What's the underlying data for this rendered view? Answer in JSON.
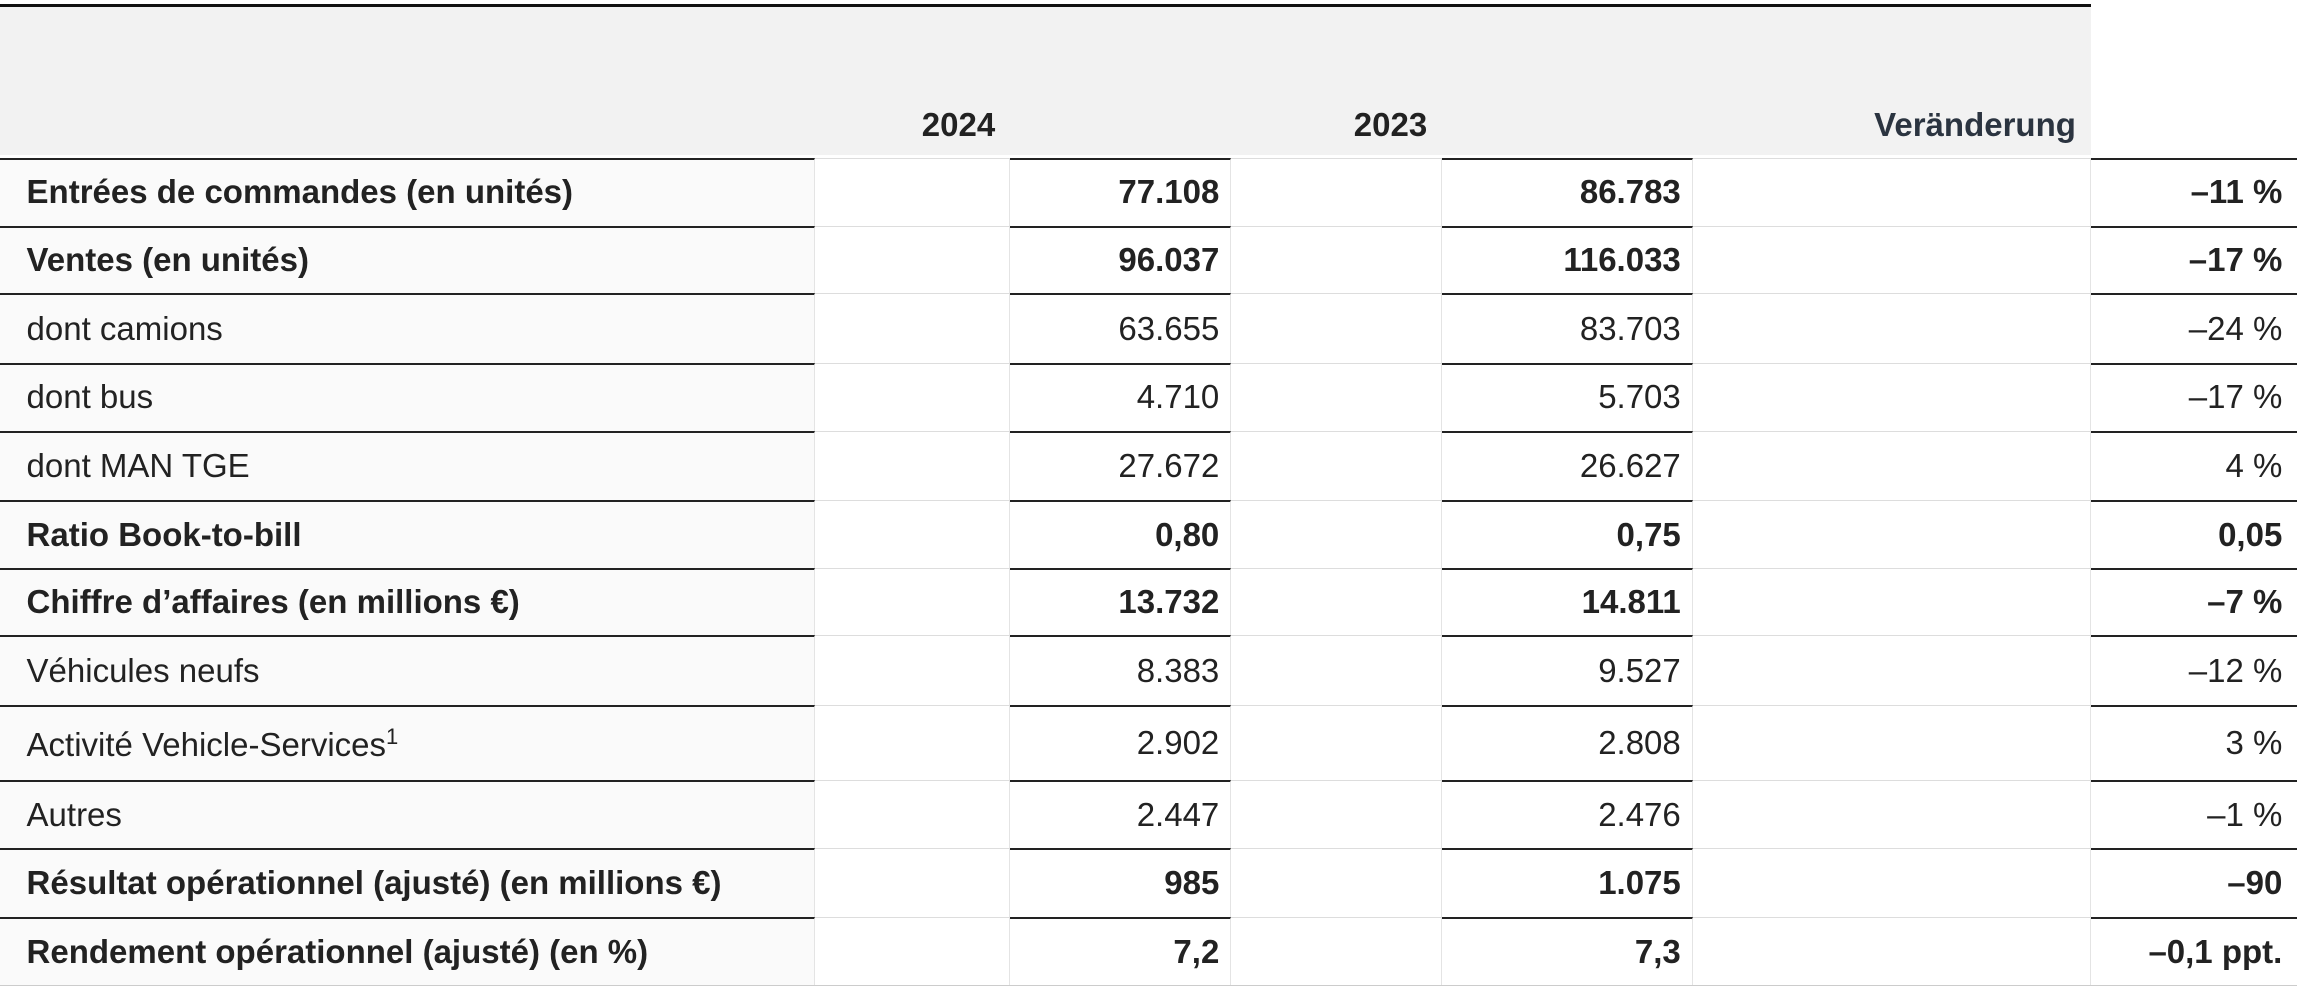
{
  "header": {
    "years": [
      "2024",
      "2023"
    ],
    "change": "Veränderung"
  },
  "rows": [
    {
      "label": "Entrées de commandes (en unités)",
      "values": [
        "77.108",
        "86.783",
        "–11 %"
      ],
      "bold": true
    },
    {
      "label": "Ventes (en unités)",
      "values": [
        "96.037",
        "116.033",
        "–17 %"
      ],
      "bold": true
    },
    {
      "label": "dont camions",
      "values": [
        "63.655",
        "83.703",
        "–24 %"
      ],
      "bold": false
    },
    {
      "label": "dont bus",
      "values": [
        "4.710",
        "5.703",
        "–17 %"
      ],
      "bold": false
    },
    {
      "label": "dont MAN TGE",
      "values": [
        "27.672",
        "26.627",
        "4 %"
      ],
      "bold": false
    },
    {
      "label": "Ratio Book-to-bill",
      "values": [
        "0,80",
        "0,75",
        "0,05"
      ],
      "bold": true
    },
    {
      "label": "Chiffre d’affaires (en millions €)",
      "values": [
        "13.732",
        "14.811",
        "–7 %"
      ],
      "bold": true
    },
    {
      "label": "Véhicules neufs",
      "values": [
        "8.383",
        "9.527",
        "–12 %"
      ],
      "bold": false
    },
    {
      "label": "Activité Vehicle-Services",
      "note": "1",
      "values": [
        "2.902",
        "2.808",
        "3 %"
      ],
      "bold": false
    },
    {
      "label": "Autres",
      "values": [
        "2.447",
        "2.476",
        "–1 %"
      ],
      "bold": false
    },
    {
      "label": "Résultat opérationnel (ajusté) (en millions €)",
      "values": [
        "985",
        "1.075",
        "–90"
      ],
      "bold": true
    },
    {
      "label": "Rendement opérationnel (ajusté) (en %)",
      "values": [
        "7,2",
        "7,3",
        "–0,1 ppt."
      ],
      "bold": true
    }
  ]
}
